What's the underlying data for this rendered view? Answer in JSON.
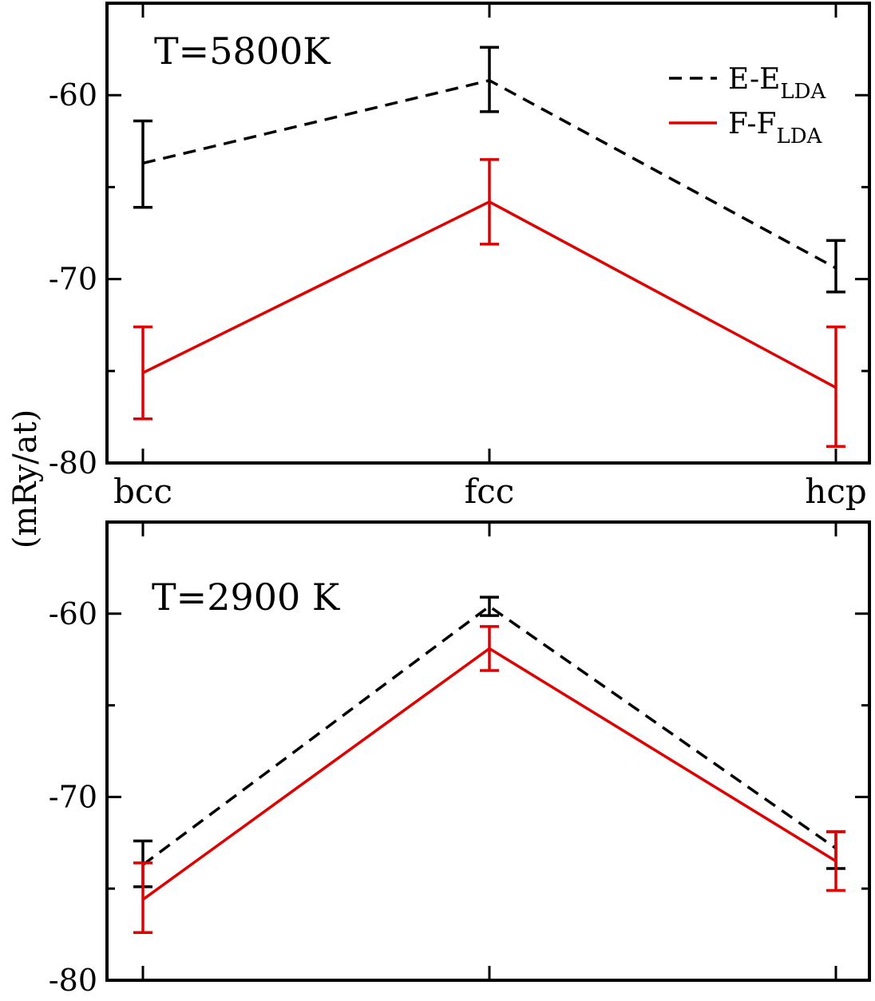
{
  "chart_data": {
    "type": "line",
    "ylabel": "(mRy/at)",
    "categories": [
      "bcc",
      "fcc",
      "hcp"
    ],
    "legend": {
      "position": "top-right",
      "entries": [
        {
          "series": "E-E_LDA",
          "main": "E-E",
          "sub": "LDA",
          "style": "dashed",
          "color": "#000000"
        },
        {
          "series": "F-F_LDA",
          "main": "F-F",
          "sub": "LDA",
          "style": "solid",
          "color": "#e00000"
        }
      ]
    },
    "panels": [
      {
        "annotation": "T=5800K",
        "ylim": [
          -80,
          -55
        ],
        "yticks": [
          -60,
          -70,
          -80
        ],
        "tick_labels": [
          "-60",
          "-70",
          "-80"
        ],
        "show_category_labels": true,
        "show_legend": true,
        "series": [
          {
            "name": "E-E_LDA",
            "color": "#000000",
            "style": "dashed",
            "values": [
              -63.7,
              -59.2,
              -69.4
            ],
            "errors": [
              [
                -66.1,
                -61.4
              ],
              [
                -60.9,
                -57.4
              ],
              [
                -70.7,
                -67.9
              ]
            ]
          },
          {
            "name": "F-F_LDA",
            "color": "#e00000",
            "style": "solid",
            "values": [
              -75.1,
              -65.8,
              -75.9
            ],
            "errors": [
              [
                -77.6,
                -72.6
              ],
              [
                -68.1,
                -63.5
              ],
              [
                -79.1,
                -72.6
              ]
            ]
          }
        ]
      },
      {
        "annotation": "T=2900 K",
        "ylim": [
          -80,
          -55
        ],
        "yticks": [
          -60,
          -70,
          -80
        ],
        "tick_labels": [
          "-60",
          "-70",
          "-80"
        ],
        "show_category_labels": false,
        "show_legend": false,
        "series": [
          {
            "name": "E-E_LDA",
            "color": "#000000",
            "style": "dashed",
            "values": [
              -73.7,
              -59.6,
              -72.8
            ],
            "errors": [
              [
                -74.9,
                -72.4
              ],
              [
                -60.1,
                -59.1
              ],
              [
                -73.9,
                -71.9
              ]
            ]
          },
          {
            "name": "F-F_LDA",
            "color": "#e00000",
            "style": "solid",
            "values": [
              -75.6,
              -61.9,
              -73.5
            ],
            "errors": [
              [
                -77.4,
                -73.6
              ],
              [
                -63.1,
                -60.7
              ],
              [
                -75.1,
                -71.9
              ]
            ]
          }
        ]
      }
    ]
  }
}
